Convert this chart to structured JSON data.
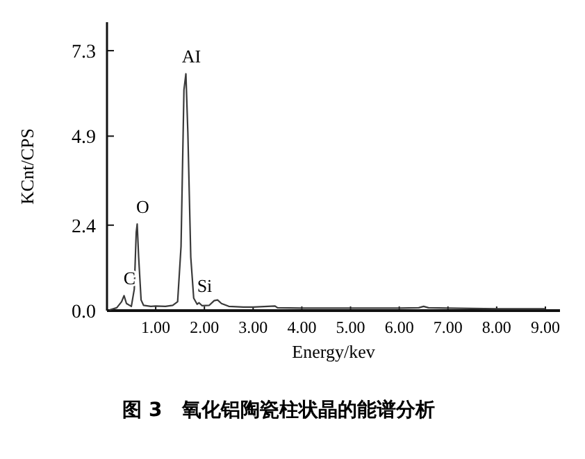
{
  "chart_data": {
    "type": "line",
    "title": "图 3　氧化铝陶瓷柱状晶的能谱分析",
    "xlabel": "Energy/kev",
    "ylabel": "KCnt/CPS",
    "xlim": [
      0,
      9.3
    ],
    "ylim": [
      0,
      8.1
    ],
    "xticks": [
      {
        "value": 1,
        "label": "1.00"
      },
      {
        "value": 2,
        "label": "2.00"
      },
      {
        "value": 3,
        "label": "3.00"
      },
      {
        "value": 4,
        "label": "4.00"
      },
      {
        "value": 5,
        "label": "5.00"
      },
      {
        "value": 6,
        "label": "6.00"
      },
      {
        "value": 7,
        "label": "7.00"
      },
      {
        "value": 8,
        "label": "8.00"
      },
      {
        "value": 9,
        "label": "9.00"
      }
    ],
    "yticks": [
      {
        "value": 0,
        "label": "0.0"
      },
      2.4,
      4.9,
      7.3
    ],
    "grid": false,
    "marker": "none",
    "line_style": "solid",
    "series": [
      {
        "color": "#3a3a3a",
        "x": [
          0.05,
          0.2,
          0.3,
          0.35,
          0.4,
          0.5,
          0.56,
          0.6,
          0.62,
          0.65,
          0.7,
          0.75,
          0.9,
          1.0,
          1.2,
          1.35,
          1.45,
          1.52,
          1.58,
          1.62,
          1.66,
          1.72,
          1.78,
          1.85,
          1.89,
          1.95,
          2.1,
          2.2,
          2.27,
          2.35,
          2.5,
          2.8,
          3.0,
          3.45,
          3.5,
          4.0,
          5.0,
          6.0,
          6.4,
          6.5,
          6.6,
          7.0,
          8.0,
          9.0
        ],
        "values": [
          0.02,
          0.08,
          0.25,
          0.42,
          0.2,
          0.12,
          0.6,
          2.2,
          2.43,
          1.5,
          0.3,
          0.15,
          0.12,
          0.13,
          0.12,
          0.15,
          0.25,
          1.8,
          6.2,
          6.65,
          5.0,
          1.5,
          0.35,
          0.18,
          0.22,
          0.14,
          0.15,
          0.28,
          0.3,
          0.2,
          0.12,
          0.1,
          0.1,
          0.13,
          0.08,
          0.07,
          0.07,
          0.07,
          0.08,
          0.12,
          0.08,
          0.07,
          0.05,
          0.05
        ]
      }
    ],
    "annotations": [
      {
        "text": "C",
        "x": 0.35,
        "y": 0.42
      },
      {
        "text": "O",
        "x": 0.62,
        "y": 2.43
      },
      {
        "text": "AI",
        "x": 1.62,
        "y": 6.65
      },
      {
        "text": "Si",
        "x": 1.89,
        "y": 0.22
      }
    ]
  }
}
